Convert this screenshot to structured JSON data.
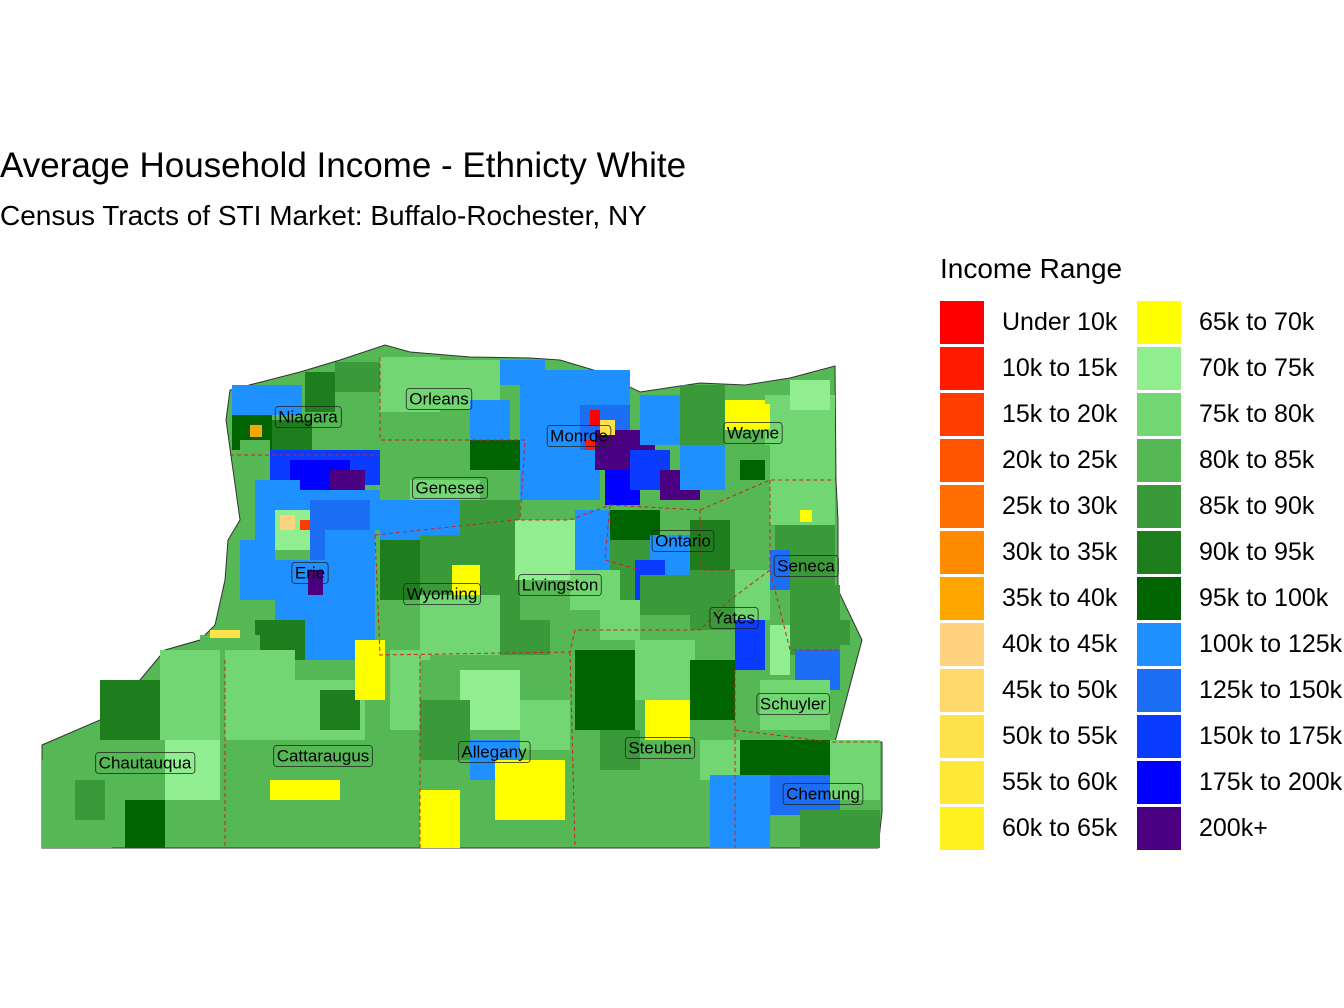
{
  "title": "Average Household Income - Ethnicty White",
  "subtitle": "Census Tracts of STI Market: Buffalo-Rochester, NY",
  "legend": {
    "title": "Income Range",
    "items": [
      {
        "label": "Under 10k",
        "color": "#FF0000"
      },
      {
        "label": "10k to 15k",
        "color": "#FF1A00"
      },
      {
        "label": "15k to 20k",
        "color": "#FF3C00"
      },
      {
        "label": "20k to 25k",
        "color": "#FF5500"
      },
      {
        "label": "25k to 30k",
        "color": "#FF6E00"
      },
      {
        "label": "30k to 35k",
        "color": "#FF8C00"
      },
      {
        "label": "35k to 40k",
        "color": "#FFA500"
      },
      {
        "label": "40k to 45k",
        "color": "#FFD27F"
      },
      {
        "label": "45k to 50k",
        "color": "#FFDA6A"
      },
      {
        "label": "50k to 55k",
        "color": "#FFE14A"
      },
      {
        "label": "55k to 60k",
        "color": "#FFE838"
      },
      {
        "label": "60k to 65k",
        "color": "#FFF020"
      },
      {
        "label": "65k to 70k",
        "color": "#FFFF00"
      },
      {
        "label": "70k to 75k",
        "color": "#90EE90"
      },
      {
        "label": "75k to 80k",
        "color": "#72D672"
      },
      {
        "label": "80k to 85k",
        "color": "#55B855"
      },
      {
        "label": "85k to 90k",
        "color": "#3A9A3A"
      },
      {
        "label": "90k to 95k",
        "color": "#1E7E1E"
      },
      {
        "label": "95k to 100k",
        "color": "#006400"
      },
      {
        "label": "100k to 125k",
        "color": "#1E90FF"
      },
      {
        "label": "125k to 150k",
        "color": "#1C6EF5"
      },
      {
        "label": "150k to 175k",
        "color": "#0A3CFF"
      },
      {
        "label": "175k to 200k",
        "color": "#0000FF"
      },
      {
        "label": "200k+",
        "color": "#4B0082"
      }
    ]
  },
  "counties": [
    {
      "name": "Niagara"
    },
    {
      "name": "Orleans"
    },
    {
      "name": "Monroe"
    },
    {
      "name": "Wayne"
    },
    {
      "name": "Genesee"
    },
    {
      "name": "Ontario"
    },
    {
      "name": "Erie"
    },
    {
      "name": "Wyoming"
    },
    {
      "name": "Livingston"
    },
    {
      "name": "Seneca"
    },
    {
      "name": "Yates"
    },
    {
      "name": "Schuyler"
    },
    {
      "name": "Chautauqua"
    },
    {
      "name": "Cattaraugus"
    },
    {
      "name": "Allegany"
    },
    {
      "name": "Steuben"
    },
    {
      "name": "Chemung"
    }
  ]
}
